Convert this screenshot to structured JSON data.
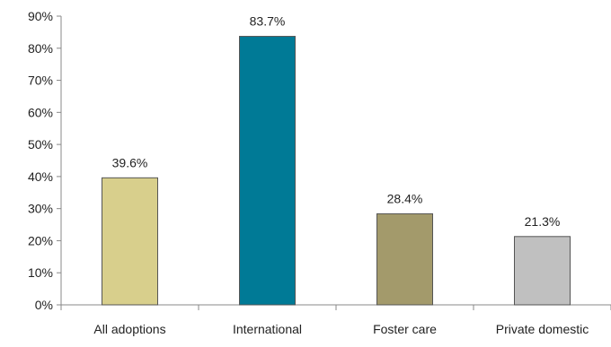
{
  "chart_data": {
    "type": "bar",
    "title": "",
    "xlabel": "",
    "ylabel": "",
    "categories": [
      "All adoptions",
      "International",
      "Foster care",
      "Private domestic"
    ],
    "values": [
      39.6,
      83.7,
      28.4,
      21.3
    ],
    "data_labels": [
      "39.6%",
      "83.7%",
      "28.4%",
      "21.3%"
    ],
    "colors": [
      "#d8cf8c",
      "#007a96",
      "#a39a6b",
      "#c0c0c0"
    ],
    "ylim": [
      0,
      90
    ],
    "yticks": [
      0,
      10,
      20,
      30,
      40,
      50,
      60,
      70,
      80,
      90
    ],
    "ytick_labels": [
      "0%",
      "10%",
      "20%",
      "30%",
      "40%",
      "50%",
      "60%",
      "70%",
      "80%",
      "90%"
    ],
    "grid": false,
    "legend": "none"
  }
}
